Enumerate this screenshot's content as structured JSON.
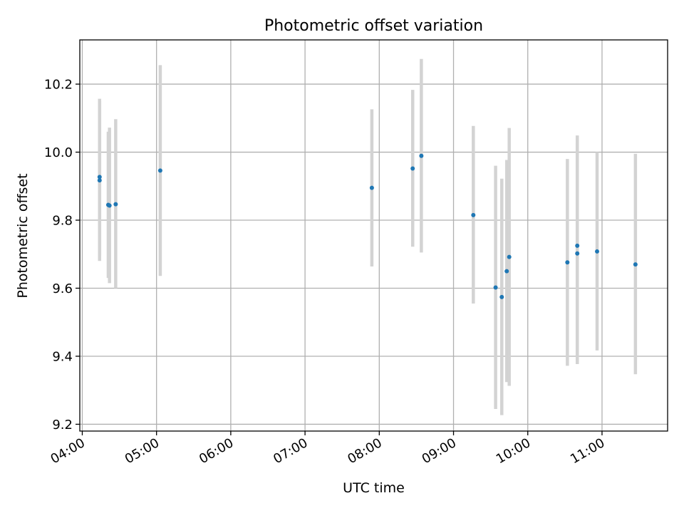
{
  "chart_data": {
    "type": "scatter",
    "title": "Photometric offset variation",
    "xlabel": "UTC time",
    "ylabel": "Photometric offset",
    "x_ticks": [
      "04:00",
      "05:00",
      "06:00",
      "07:00",
      "08:00",
      "09:00",
      "10:00",
      "11:00"
    ],
    "y_ticks": [
      "9.2",
      "9.4",
      "9.6",
      "9.8",
      "10.0",
      "10.2"
    ],
    "xlim": [
      "03:58",
      "11:53"
    ],
    "ylim": [
      9.18,
      10.33
    ],
    "grid": true,
    "legend": "none",
    "error_bar_color": "#d3d3d3",
    "point_color": "#1f77b4",
    "points": [
      {
        "x": "04:14",
        "y": 9.927,
        "y_low": 9.696,
        "y_high": 10.157
      },
      {
        "x": "04:14",
        "y": 9.917,
        "y_low": 9.68,
        "y_high": 10.15
      },
      {
        "x": "04:21",
        "y": 9.845,
        "y_low": 9.63,
        "y_high": 10.06
      },
      {
        "x": "04:22",
        "y": 9.843,
        "y_low": 9.615,
        "y_high": 10.072
      },
      {
        "x": "04:27",
        "y": 9.847,
        "y_low": 9.6,
        "y_high": 10.097
      },
      {
        "x": "05:03",
        "y": 9.946,
        "y_low": 9.636,
        "y_high": 10.256
      },
      {
        "x": "07:54",
        "y": 9.895,
        "y_low": 9.664,
        "y_high": 10.126
      },
      {
        "x": "08:27",
        "y": 9.952,
        "y_low": 9.722,
        "y_high": 10.183
      },
      {
        "x": "08:34",
        "y": 9.989,
        "y_low": 9.705,
        "y_high": 10.274
      },
      {
        "x": "09:16",
        "y": 9.815,
        "y_low": 9.555,
        "y_high": 10.077
      },
      {
        "x": "09:34",
        "y": 9.602,
        "y_low": 9.245,
        "y_high": 9.96
      },
      {
        "x": "09:39",
        "y": 9.574,
        "y_low": 9.227,
        "y_high": 9.922
      },
      {
        "x": "09:43",
        "y": 9.65,
        "y_low": 9.324,
        "y_high": 9.977
      },
      {
        "x": "09:45",
        "y": 9.692,
        "y_low": 9.313,
        "y_high": 10.071
      },
      {
        "x": "10:32",
        "y": 9.676,
        "y_low": 9.372,
        "y_high": 9.98
      },
      {
        "x": "10:40",
        "y": 9.725,
        "y_low": 9.398,
        "y_high": 10.049
      },
      {
        "x": "10:40",
        "y": 9.702,
        "y_low": 9.377,
        "y_high": 10.028
      },
      {
        "x": "10:56",
        "y": 9.708,
        "y_low": 9.417,
        "y_high": 10.0
      },
      {
        "x": "11:27",
        "y": 9.67,
        "y_low": 9.347,
        "y_high": 9.995
      }
    ]
  }
}
